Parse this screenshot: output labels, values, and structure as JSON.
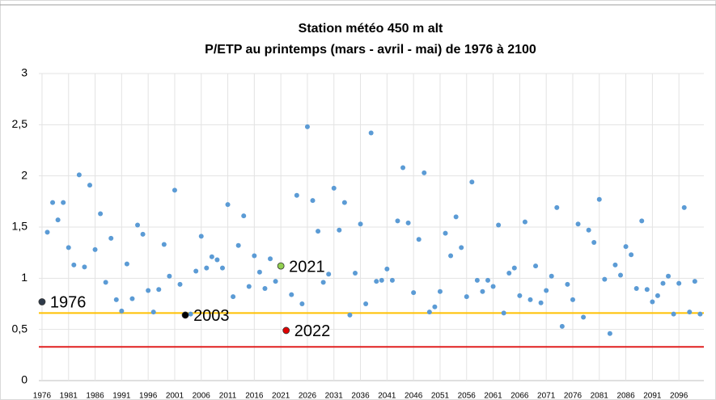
{
  "chart_data": {
    "type": "scatter",
    "title": "Station météo 450 m alt",
    "subtitle": "P/ETP au printemps (mars - avril - mai) de 1976 à 2100",
    "xlim": [
      1975.4,
      2100.7
    ],
    "xticks": [
      1976,
      1981,
      1986,
      1991,
      1996,
      2001,
      2006,
      2011,
      2016,
      2021,
      2026,
      2031,
      2036,
      2041,
      2046,
      2051,
      2056,
      2061,
      2066,
      2071,
      2076,
      2081,
      2086,
      2091,
      2096
    ],
    "ylim": [
      0,
      3
    ],
    "yticks": [
      0,
      {
        "value": 0.5,
        "label": "0,5"
      },
      1,
      {
        "value": 1.5,
        "label": "1,5"
      },
      2,
      {
        "value": 2.5,
        "label": "2,5"
      },
      3
    ],
    "grid": true,
    "series": [
      {
        "color": "#5b9bd5",
        "x": [
          1977,
          1978,
          1979,
          1980,
          1981,
          1982,
          1983,
          1984,
          1985,
          1986,
          1987,
          1988,
          1989,
          1990,
          1991,
          1992,
          1993,
          1994,
          1995,
          1996,
          1997,
          1998,
          1999,
          2000,
          2001,
          2002,
          2004,
          2005,
          2006,
          2007,
          2008,
          2009,
          2010,
          2011,
          2012,
          2013,
          2014,
          2015,
          2016,
          2017,
          2018,
          2019,
          2020,
          2023,
          2024,
          2025,
          2026,
          2027,
          2028,
          2029,
          2030,
          2031,
          2032,
          2033,
          2034,
          2035,
          2036,
          2037,
          2038,
          2039,
          2040,
          2041,
          2042,
          2043,
          2044,
          2045,
          2046,
          2047,
          2048,
          2049,
          2050,
          2051,
          2052,
          2053,
          2054,
          2055,
          2056,
          2057,
          2058,
          2059,
          2060,
          2061,
          2062,
          2063,
          2064,
          2065,
          2066,
          2067,
          2068,
          2069,
          2070,
          2071,
          2072,
          2073,
          2074,
          2075,
          2076,
          2077,
          2078,
          2079,
          2080,
          2081,
          2082,
          2083,
          2084,
          2085,
          2086,
          2087,
          2088,
          2089,
          2090,
          2091,
          2092,
          2093,
          2094,
          2095,
          2096,
          2097,
          2098,
          2099,
          2100
        ],
        "values": [
          1.45,
          1.74,
          1.57,
          1.74,
          1.3,
          1.13,
          2.01,
          1.11,
          1.91,
          1.28,
          1.63,
          0.96,
          1.39,
          0.79,
          0.68,
          1.14,
          0.8,
          1.52,
          1.43,
          0.88,
          0.67,
          0.89,
          1.33,
          1.02,
          1.86,
          0.94,
          0.65,
          1.07,
          1.41,
          1.1,
          1.21,
          1.18,
          1.1,
          1.72,
          0.82,
          1.32,
          1.61,
          0.92,
          1.22,
          1.06,
          0.9,
          1.19,
          0.97,
          0.84,
          1.81,
          0.75,
          2.48,
          1.76,
          1.46,
          0.96,
          1.04,
          1.88,
          1.47,
          1.74,
          0.64,
          1.05,
          1.53,
          0.75,
          2.42,
          0.97,
          0.98,
          1.09,
          0.98,
          1.56,
          2.08,
          1.54,
          0.86,
          1.38,
          2.03,
          0.67,
          0.72,
          0.87,
          1.44,
          1.22,
          1.6,
          1.3,
          0.82,
          1.94,
          0.98,
          0.87,
          0.98,
          0.92,
          1.52,
          0.66,
          1.05,
          1.1,
          0.83,
          1.55,
          0.79,
          1.12,
          0.76,
          0.88,
          1.02,
          1.69,
          0.53,
          0.94,
          0.79,
          1.53,
          0.62,
          1.47,
          1.35,
          1.77,
          0.99,
          0.46,
          1.13,
          1.03,
          1.31,
          1.23,
          0.9,
          1.56,
          0.89,
          0.77,
          0.83,
          0.95,
          1.02,
          0.65,
          0.95,
          1.69,
          0.67,
          0.97,
          0.65
        ]
      }
    ],
    "highlights": [
      {
        "label": "1976",
        "x": 1976,
        "value": 0.77,
        "color": "#2f3b4a"
      },
      {
        "label": "2003",
        "x": 2003,
        "value": 0.64,
        "color": "#000000"
      },
      {
        "label": "2021",
        "x": 2021,
        "value": 1.12,
        "color": "#92d050"
      },
      {
        "label": "2022",
        "x": 2022,
        "value": 0.49,
        "color": "#e00000"
      }
    ],
    "reference_lines": [
      {
        "value": 0.66,
        "color": "#ffc000"
      },
      {
        "value": 0.33,
        "color": "#e02020"
      }
    ]
  }
}
